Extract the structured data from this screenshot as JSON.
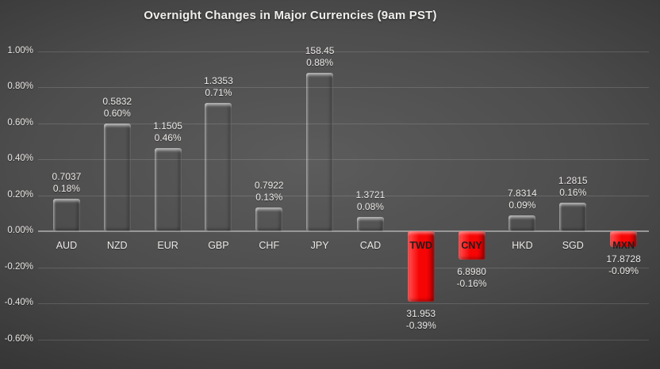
{
  "chart_data": {
    "type": "bar",
    "title": "Overnight Changes in Major Currencies (9am PST)",
    "xlabel": "",
    "ylabel": "",
    "grid": true,
    "legend": false,
    "y_axis": {
      "min": -0.6,
      "max": 1.0,
      "step": 0.2,
      "unit": "percent",
      "tick_labels": [
        "1.00%",
        "0.80%",
        "0.60%",
        "0.40%",
        "0.20%",
        "0.00%",
        "-0.20%",
        "-0.40%",
        "-0.60%"
      ]
    },
    "categories": [
      "AUD",
      "NZD",
      "EUR",
      "GBP",
      "CHF",
      "JPY",
      "CAD",
      "TWD",
      "CNY",
      "HKD",
      "SGD",
      "MXN"
    ],
    "points": [
      {
        "category": "AUD",
        "rate": "0.7037",
        "change_label": "0.18%",
        "change_pct": 0.18
      },
      {
        "category": "NZD",
        "rate": "0.5832",
        "change_label": "0.60%",
        "change_pct": 0.6
      },
      {
        "category": "EUR",
        "rate": "1.1505",
        "change_label": "0.46%",
        "change_pct": 0.46
      },
      {
        "category": "GBP",
        "rate": "1.3353",
        "change_label": "0.71%",
        "change_pct": 0.71
      },
      {
        "category": "CHF",
        "rate": "0.7922",
        "change_label": "0.13%",
        "change_pct": 0.13
      },
      {
        "category": "JPY",
        "rate": "158.45",
        "change_label": "0.88%",
        "change_pct": 0.88
      },
      {
        "category": "CAD",
        "rate": "1.3721",
        "change_label": "0.08%",
        "change_pct": 0.08
      },
      {
        "category": "TWD",
        "rate": "31.953",
        "change_label": "-0.39%",
        "change_pct": -0.39
      },
      {
        "category": "CNY",
        "rate": "6.8980",
        "change_label": "-0.16%",
        "change_pct": -0.16
      },
      {
        "category": "HKD",
        "rate": "7.8314",
        "change_label": "0.09%",
        "change_pct": 0.09
      },
      {
        "category": "SGD",
        "rate": "1.2815",
        "change_label": "0.16%",
        "change_pct": 0.16
      },
      {
        "category": "MXN",
        "rate": "17.8728",
        "change_label": "-0.09%",
        "change_pct": -0.09
      }
    ],
    "colors": {
      "positive_bar": "#5C95DB",
      "negative_bar": "#F70505",
      "background_center": "#5C5C5C",
      "background_edge": "#222222",
      "axis_text": "#E9E7E4",
      "zero_line": "#989898",
      "negative_category_text": "#1F1F1F"
    }
  }
}
